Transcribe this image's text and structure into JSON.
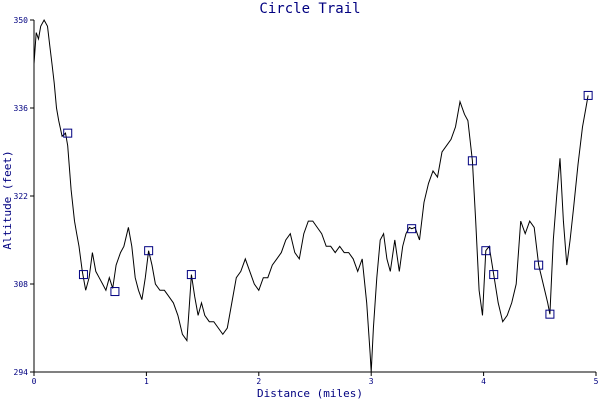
{
  "chart_data": {
    "type": "line",
    "title": "Circle Trail",
    "xlabel": "Distance (miles)",
    "ylabel": "Altitude (feet)",
    "xlim": [
      0,
      5
    ],
    "ylim": [
      294,
      350
    ],
    "xticks": [
      0,
      1,
      2,
      3,
      4,
      5
    ],
    "yticks": [
      294,
      308,
      322,
      336,
      350
    ],
    "grid": false,
    "line_color": "#000000",
    "marker_color": "#000080",
    "text_color": "#000080",
    "series": [
      {
        "values": [
          [
            0.0,
            343
          ],
          [
            0.02,
            348
          ],
          [
            0.04,
            347
          ],
          [
            0.06,
            349
          ],
          [
            0.09,
            350
          ],
          [
            0.12,
            349
          ],
          [
            0.14,
            346
          ],
          [
            0.16,
            343
          ],
          [
            0.18,
            340
          ],
          [
            0.2,
            336
          ],
          [
            0.22,
            334
          ],
          [
            0.25,
            331.5
          ],
          [
            0.28,
            332
          ],
          [
            0.3,
            330
          ],
          [
            0.33,
            323
          ],
          [
            0.36,
            318
          ],
          [
            0.38,
            316
          ],
          [
            0.4,
            314
          ],
          [
            0.43,
            310
          ],
          [
            0.46,
            307
          ],
          [
            0.49,
            309
          ],
          [
            0.52,
            313
          ],
          [
            0.55,
            310
          ],
          [
            0.58,
            309
          ],
          [
            0.61,
            308
          ],
          [
            0.64,
            307
          ],
          [
            0.67,
            309
          ],
          [
            0.7,
            307.3
          ],
          [
            0.73,
            311
          ],
          [
            0.77,
            313
          ],
          [
            0.8,
            314
          ],
          [
            0.84,
            317
          ],
          [
            0.87,
            314
          ],
          [
            0.9,
            309
          ],
          [
            0.93,
            307
          ],
          [
            0.96,
            305.5
          ],
          [
            0.99,
            309
          ],
          [
            1.02,
            313.3
          ],
          [
            1.05,
            311
          ],
          [
            1.08,
            308
          ],
          [
            1.12,
            307
          ],
          [
            1.16,
            307
          ],
          [
            1.2,
            306
          ],
          [
            1.24,
            305
          ],
          [
            1.28,
            303
          ],
          [
            1.32,
            300
          ],
          [
            1.36,
            299
          ],
          [
            1.38,
            304
          ],
          [
            1.4,
            309.5
          ],
          [
            1.43,
            306
          ],
          [
            1.46,
            303
          ],
          [
            1.49,
            305
          ],
          [
            1.52,
            303
          ],
          [
            1.56,
            302
          ],
          [
            1.6,
            302
          ],
          [
            1.64,
            301
          ],
          [
            1.68,
            300
          ],
          [
            1.72,
            301
          ],
          [
            1.76,
            305
          ],
          [
            1.8,
            309
          ],
          [
            1.84,
            310
          ],
          [
            1.88,
            312
          ],
          [
            1.92,
            310
          ],
          [
            1.96,
            308
          ],
          [
            2.0,
            307
          ],
          [
            2.04,
            309
          ],
          [
            2.08,
            309
          ],
          [
            2.12,
            311
          ],
          [
            2.16,
            312
          ],
          [
            2.2,
            313
          ],
          [
            2.24,
            315
          ],
          [
            2.28,
            316
          ],
          [
            2.32,
            313
          ],
          [
            2.36,
            312
          ],
          [
            2.4,
            316
          ],
          [
            2.44,
            318
          ],
          [
            2.48,
            318
          ],
          [
            2.52,
            317
          ],
          [
            2.56,
            316
          ],
          [
            2.6,
            314
          ],
          [
            2.64,
            314
          ],
          [
            2.68,
            313
          ],
          [
            2.72,
            314
          ],
          [
            2.76,
            313
          ],
          [
            2.8,
            313
          ],
          [
            2.84,
            312
          ],
          [
            2.88,
            310
          ],
          [
            2.92,
            312
          ],
          [
            2.96,
            305
          ],
          [
            2.99,
            297
          ],
          [
            3.0,
            294
          ],
          [
            3.02,
            301
          ],
          [
            3.05,
            309
          ],
          [
            3.08,
            315
          ],
          [
            3.11,
            316
          ],
          [
            3.14,
            312
          ],
          [
            3.17,
            310
          ],
          [
            3.21,
            315
          ],
          [
            3.25,
            310
          ],
          [
            3.28,
            314
          ],
          [
            3.31,
            316
          ],
          [
            3.34,
            317
          ],
          [
            3.36,
            316.8
          ],
          [
            3.39,
            317
          ],
          [
            3.43,
            315
          ],
          [
            3.47,
            321
          ],
          [
            3.51,
            324
          ],
          [
            3.55,
            326
          ],
          [
            3.59,
            325
          ],
          [
            3.63,
            329
          ],
          [
            3.67,
            330
          ],
          [
            3.71,
            331
          ],
          [
            3.75,
            333
          ],
          [
            3.79,
            337
          ],
          [
            3.83,
            335
          ],
          [
            3.86,
            334
          ],
          [
            3.9,
            327.6
          ],
          [
            3.93,
            318
          ],
          [
            3.96,
            307
          ],
          [
            3.99,
            303
          ],
          [
            4.02,
            313.3
          ],
          [
            4.05,
            314
          ],
          [
            4.09,
            309.5
          ],
          [
            4.13,
            305
          ],
          [
            4.17,
            302
          ],
          [
            4.21,
            303
          ],
          [
            4.25,
            305
          ],
          [
            4.29,
            308
          ],
          [
            4.33,
            318
          ],
          [
            4.37,
            316
          ],
          [
            4.41,
            318
          ],
          [
            4.45,
            317
          ],
          [
            4.49,
            311
          ],
          [
            4.53,
            308
          ],
          [
            4.57,
            305
          ],
          [
            4.59,
            303.2
          ],
          [
            4.62,
            315
          ],
          [
            4.65,
            322
          ],
          [
            4.68,
            328
          ],
          [
            4.71,
            318
          ],
          [
            4.74,
            311
          ],
          [
            4.77,
            315
          ],
          [
            4.8,
            320
          ],
          [
            4.84,
            327
          ],
          [
            4.88,
            333
          ],
          [
            4.91,
            336
          ],
          [
            4.93,
            338
          ]
        ]
      }
    ],
    "markers": [
      [
        0.3,
        332
      ],
      [
        0.44,
        309.5
      ],
      [
        0.72,
        306.8
      ],
      [
        1.02,
        313.3
      ],
      [
        1.4,
        309.5
      ],
      [
        3.36,
        316.8
      ],
      [
        3.9,
        327.6
      ],
      [
        4.02,
        313.3
      ],
      [
        4.09,
        309.5
      ],
      [
        4.49,
        311
      ],
      [
        4.59,
        303.2
      ],
      [
        4.93,
        338
      ]
    ]
  }
}
